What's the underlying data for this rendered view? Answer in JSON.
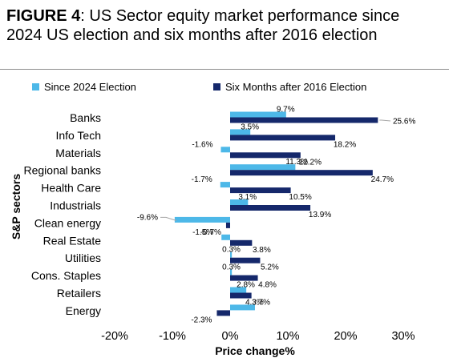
{
  "header": {
    "figure_label": "FIGURE 4",
    "figure_sep": ": ",
    "text": "US Sector equity market performance since 2024 US election and six months after 2016 election"
  },
  "colors": {
    "since_2024": "#4db8e8",
    "after_2016": "#15286b",
    "leader": "#a6a6a6"
  },
  "chart_data": {
    "type": "bar",
    "orientation": "horizontal",
    "title": "US Sector equity market performance since 2024 US election and six months after 2016 election",
    "xlabel": "Price change%",
    "ylabel": "S&P sectors",
    "xlim": [
      -20,
      30
    ],
    "xticks": [
      -20,
      -10,
      0,
      10,
      20,
      30
    ],
    "x_tick_labels": [
      "-20%",
      "-10%",
      "0%",
      "10%",
      "20%",
      "30%"
    ],
    "legend_position": "top",
    "grid": false,
    "categories": [
      "Banks",
      "Info Tech",
      "Materials",
      "Regional banks",
      "Health Care",
      "Industrials",
      "Clean energy",
      "Real Estate",
      "Utilities",
      "Cons. Staples",
      "Retailers",
      "Energy"
    ],
    "series": [
      {
        "name": "Since 2024 Election",
        "values": [
          9.7,
          3.5,
          -1.6,
          11.3,
          -1.7,
          3.1,
          -9.6,
          -1.5,
          0.3,
          0.3,
          2.8,
          4.3
        ],
        "labels": [
          "9.7%",
          "3.5%",
          "-1.6%",
          "11.3%",
          "-1.7%",
          "3.1%",
          "-9.6%",
          "-1.5%",
          "0.3%",
          "0.3%",
          "2.8%",
          "4.3%"
        ]
      },
      {
        "name": "Six Months after 2016 Election",
        "values": [
          25.6,
          18.2,
          12.2,
          24.7,
          10.5,
          13.9,
          -0.7,
          3.8,
          5.2,
          4.8,
          3.7,
          -2.3
        ],
        "labels": [
          "25.6%",
          "18.2%",
          "12.2%",
          "24.7%",
          "10.5%",
          "13.9%",
          "-0.7%",
          "3.8%",
          "5.2%",
          "4.8%",
          "3.7%",
          "-2.3%"
        ]
      }
    ]
  }
}
